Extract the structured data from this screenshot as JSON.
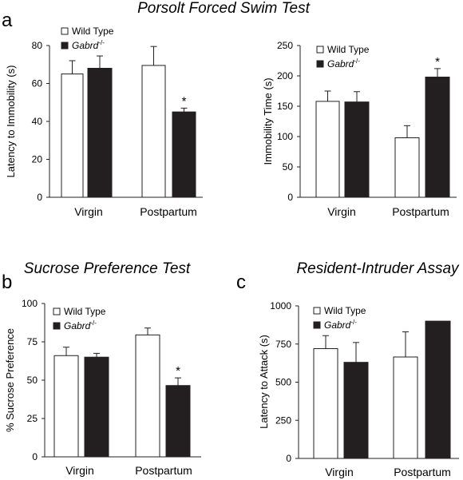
{
  "titles": {
    "forced_swim": "Porsolt Forced Swim Test",
    "sucrose": "Sucrose Preference Test",
    "resident_intruder": "Resident-Intruder Assay"
  },
  "panel_letters": {
    "a": "a",
    "b": "b",
    "c": "c"
  },
  "legend": {
    "wild_type": "Wild Type",
    "gabrd_base": "Gabrd",
    "gabrd_sup": "-/-"
  },
  "significance_mark": "*",
  "colors": {
    "wild_type": "#ffffff",
    "gabrd": "#231f20",
    "stroke": "#231f20"
  },
  "chart_data": [
    {
      "id": "latency_immobility",
      "type": "bar",
      "categories": [
        "Virgin",
        "Postpartum"
      ],
      "ylabel": "Latency to Immobility (s)",
      "xlabel": "",
      "ylim": [
        0,
        80
      ],
      "yticks": [
        0,
        20,
        40,
        60,
        80
      ],
      "error_bars": "upper",
      "series": [
        {
          "name": "Wild Type",
          "values": [
            65,
            69.5
          ],
          "errors": [
            7,
            10
          ]
        },
        {
          "name": "Gabrd-/-",
          "values": [
            68,
            45
          ],
          "errors": [
            6.5,
            2
          ]
        }
      ],
      "significance": [
        {
          "category": "Postpartum",
          "series": 1,
          "label": "*"
        }
      ],
      "legend": "top-left"
    },
    {
      "id": "immobility_time",
      "type": "bar",
      "categories": [
        "Virgin",
        "Postpartum"
      ],
      "ylabel": "Immobility Time (s)",
      "xlabel": "",
      "ylim": [
        0,
        250
      ],
      "yticks": [
        0,
        50,
        100,
        150,
        200,
        250
      ],
      "error_bars": "upper",
      "series": [
        {
          "name": "Wild Type",
          "values": [
            158,
            98
          ],
          "errors": [
            17,
            20
          ]
        },
        {
          "name": "Gabrd-/-",
          "values": [
            157,
            198
          ],
          "errors": [
            17,
            14
          ]
        }
      ],
      "significance": [
        {
          "category": "Postpartum",
          "series": 1,
          "label": "*"
        }
      ],
      "legend": "top-left"
    },
    {
      "id": "sucrose_preference",
      "type": "bar",
      "categories": [
        "Virgin",
        "Postpartum"
      ],
      "ylabel": "% Sucrose Preference",
      "xlabel": "",
      "ylim": [
        0,
        100
      ],
      "yticks": [
        0,
        25,
        50,
        75,
        100
      ],
      "error_bars": "upper",
      "series": [
        {
          "name": "Wild Type",
          "values": [
            66,
            79.5
          ],
          "errors": [
            5.5,
            4.5
          ]
        },
        {
          "name": "Gabrd-/-",
          "values": [
            65,
            46.5
          ],
          "errors": [
            2.5,
            5
          ]
        }
      ],
      "significance": [
        {
          "category": "Postpartum",
          "series": 1,
          "label": "*"
        }
      ],
      "legend": "top-left"
    },
    {
      "id": "latency_to_attack",
      "type": "bar",
      "categories": [
        "Virgin",
        "Postpartum"
      ],
      "ylabel": "Latency to Attack (s)",
      "xlabel": "",
      "ylim": [
        0,
        1000
      ],
      "yticks": [
        0,
        250,
        500,
        750,
        1000
      ],
      "error_bars": "upper",
      "series": [
        {
          "name": "Wild Type",
          "values": [
            720,
            665
          ],
          "errors": [
            85,
            165
          ]
        },
        {
          "name": "Gabrd-/-",
          "values": [
            630,
            900
          ],
          "errors": [
            130,
            0
          ]
        }
      ],
      "significance": [],
      "legend": "top-left"
    }
  ]
}
